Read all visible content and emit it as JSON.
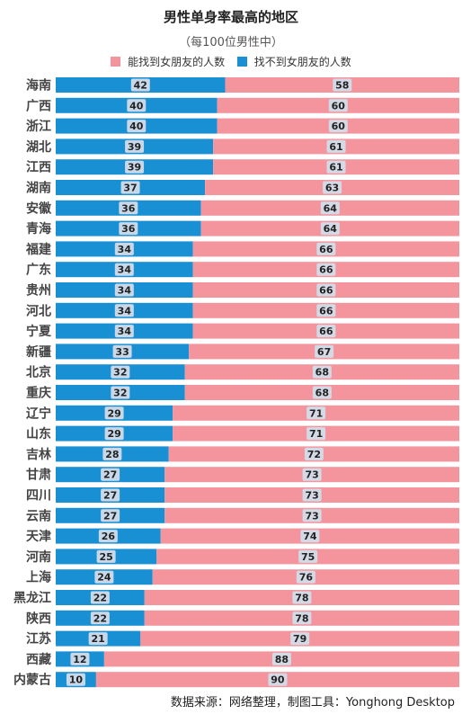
{
  "chart_data": {
    "type": "bar",
    "orientation": "horizontal",
    "stacked": true,
    "title": "男性单身率最高的地区",
    "subtitle": "（每100位男性中）",
    "categories": [
      "海南",
      "广西",
      "浙江",
      "湖北",
      "江西",
      "湖南",
      "安徽",
      "青海",
      "福建",
      "广东",
      "贵州",
      "河北",
      "宁夏",
      "新疆",
      "北京",
      "重庆",
      "辽宁",
      "山东",
      "吉林",
      "甘肃",
      "四川",
      "云南",
      "天津",
      "河南",
      "上海",
      "黑龙江",
      "陕西",
      "江苏",
      "西藏",
      "内蒙古"
    ],
    "series": [
      {
        "name": "找不到女朋友的人数",
        "color": "#1a90d4",
        "values": [
          42,
          40,
          40,
          39,
          39,
          37,
          36,
          36,
          34,
          34,
          34,
          34,
          34,
          33,
          32,
          32,
          29,
          29,
          28,
          27,
          27,
          27,
          26,
          25,
          24,
          22,
          22,
          21,
          12,
          10
        ]
      },
      {
        "name": "能找到女朋友的人数",
        "color": "#f4959e",
        "values": [
          58,
          60,
          60,
          61,
          61,
          63,
          64,
          64,
          66,
          66,
          66,
          66,
          66,
          67,
          68,
          68,
          71,
          71,
          72,
          73,
          73,
          73,
          74,
          75,
          76,
          78,
          78,
          79,
          88,
          90
        ]
      }
    ],
    "legend_order": [
      "能找到女朋友的人数",
      "找不到女朋友的人数"
    ],
    "legend_position": "top",
    "xlim": [
      0,
      100
    ],
    "grid": false
  },
  "footer": "数据来源：网络整理，制图工具：Yonghong Desktop"
}
